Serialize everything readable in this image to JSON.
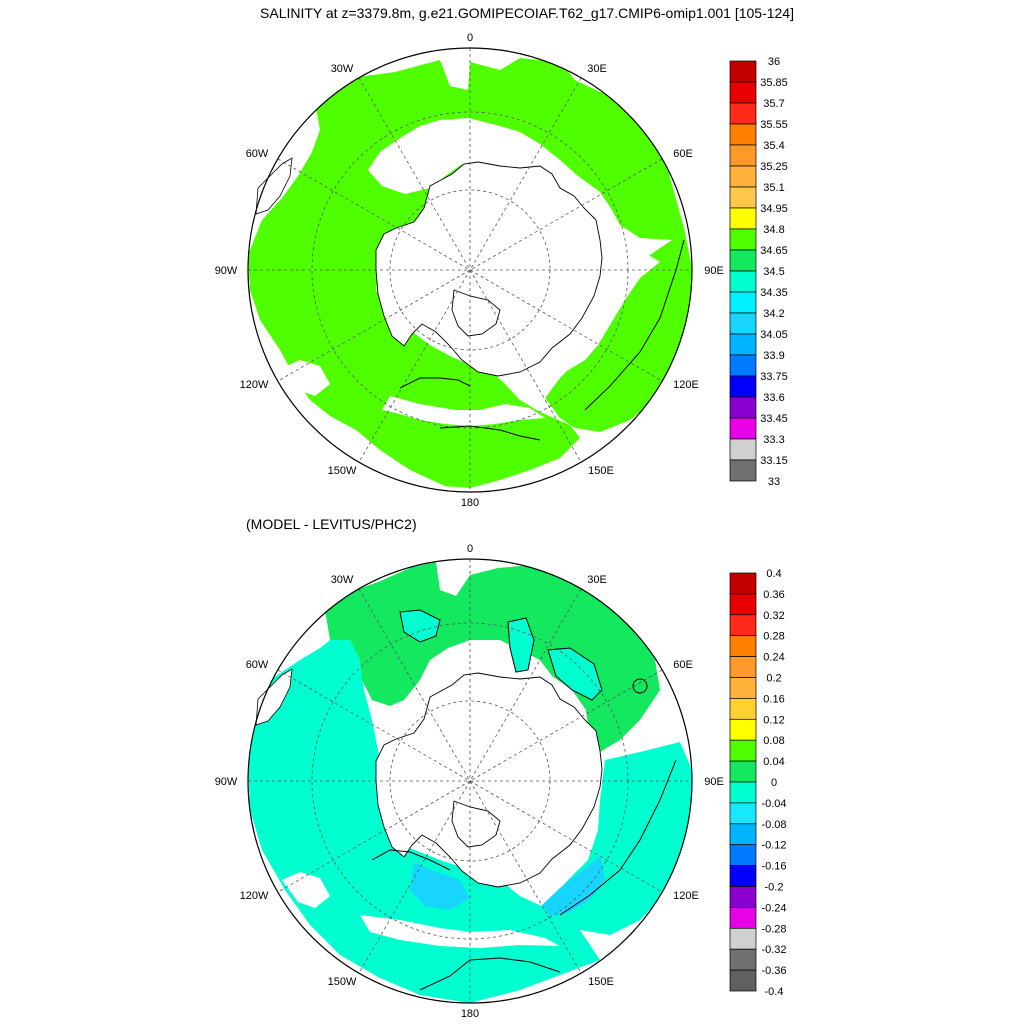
{
  "panels": [
    {
      "title": "SALINITY at z=3379.8m, g.e21.GOMIPECOIAF.T62_g17.CMIP6-omip1.001 [105-124]",
      "lon_labels": [
        "0",
        "30E",
        "60E",
        "90E",
        "120E",
        "150E",
        "180",
        "150W",
        "120W",
        "90W",
        "60W",
        "30W"
      ],
      "colorbar": {
        "labels": [
          "36",
          "35.85",
          "35.7",
          "35.55",
          "35.4",
          "35.25",
          "35.1",
          "34.95",
          "34.8",
          "34.65",
          "34.5",
          "34.35",
          "34.2",
          "34.05",
          "33.9",
          "33.75",
          "33.6",
          "33.45",
          "33.3",
          "33.15",
          "33"
        ],
        "colors": [
          "#c40000",
          "#e80000",
          "#ff2a1a",
          "#ff8000",
          "#ff9a2a",
          "#ffb13a",
          "#ffc84a",
          "#ffff00",
          "#4fff00",
          "#13e85f",
          "#00ffd0",
          "#00f0ff",
          "#18d5ff",
          "#00b4ff",
          "#007bff",
          "#0000ff",
          "#8a00d0",
          "#e800e8",
          "#d0d0d0",
          "#707070"
        ]
      },
      "field_color": "#4fff00",
      "contour_color": "#000000"
    },
    {
      "title": "(MODEL - LEVITUS/PHC2)",
      "lon_labels": [
        "0",
        "30E",
        "60E",
        "90E",
        "120E",
        "150E",
        "180",
        "150W",
        "120W",
        "90W",
        "60W",
        "30W"
      ],
      "colorbar": {
        "labels": [
          "0.4",
          "0.36",
          "0.32",
          "0.28",
          "0.24",
          "0.2",
          "0.16",
          "0.12",
          "0.08",
          "0.04",
          "0",
          "-0.04",
          "-0.08",
          "-0.12",
          "-0.16",
          "-0.2",
          "-0.24",
          "-0.28",
          "-0.32",
          "-0.36",
          "-0.4"
        ],
        "colors": [
          "#c40000",
          "#e80000",
          "#ff2a1a",
          "#ff8000",
          "#ff9a2a",
          "#ffb13a",
          "#ffd030",
          "#ffff00",
          "#4fff00",
          "#13e85f",
          "#00ffd0",
          "#18e8ff",
          "#00b4ff",
          "#007bff",
          "#0000ff",
          "#8a00d0",
          "#e800e8",
          "#d0d0d0",
          "#707070",
          "#606060"
        ]
      },
      "field_colors": {
        "positive": "#13e85f",
        "negative": "#00ffd0",
        "more_negative": "#18d5ff"
      },
      "contour_color": "#000000"
    }
  ]
}
